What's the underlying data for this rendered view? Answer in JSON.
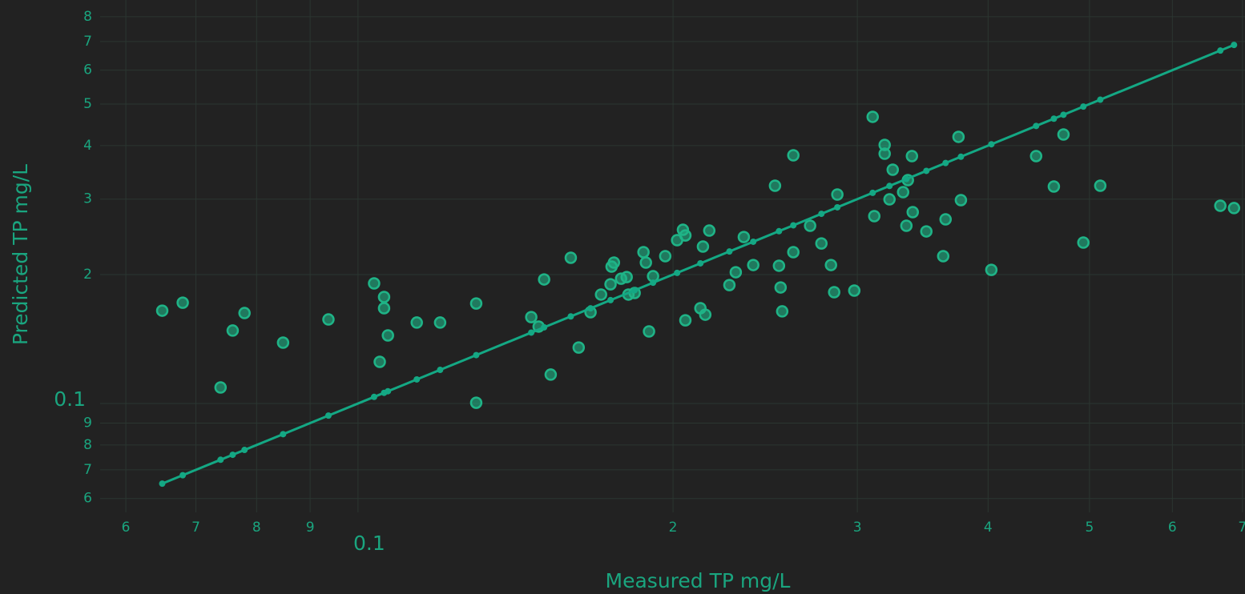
{
  "chart_data": {
    "type": "scatter",
    "x_label": "Measured TP mg/L",
    "y_label": "Predicted TP mg/L",
    "x_log": true,
    "y_log": true,
    "grid": true,
    "xlim": [
      0.0567,
      0.704
    ],
    "ylim": [
      0.0557,
      0.875
    ],
    "xticks": [
      {
        "value": 0.06,
        "label": "6"
      },
      {
        "value": 0.07,
        "label": "7"
      },
      {
        "value": 0.08,
        "label": "8"
      },
      {
        "value": 0.09,
        "label": "9"
      },
      0.1,
      {
        "value": 0.2,
        "label": "2"
      },
      {
        "value": 0.3,
        "label": "3"
      },
      {
        "value": 0.4,
        "label": "4"
      },
      {
        "value": 0.5,
        "label": "5"
      },
      {
        "value": 0.6,
        "label": "6"
      },
      {
        "value": 0.7,
        "label": "7"
      }
    ],
    "yticks": [
      {
        "value": 0.06,
        "label": "6"
      },
      {
        "value": 0.07,
        "label": "7"
      },
      {
        "value": 0.08,
        "label": "8"
      },
      {
        "value": 0.09,
        "label": "9"
      },
      0.1,
      {
        "value": 0.2,
        "label": "2"
      },
      {
        "value": 0.3,
        "label": "3"
      },
      {
        "value": 0.4,
        "label": "4"
      },
      {
        "value": 0.5,
        "label": "5"
      },
      {
        "value": 0.6,
        "label": "6"
      },
      {
        "value": 0.7,
        "label": "7"
      },
      {
        "value": 0.8,
        "label": "8"
      }
    ],
    "series": [
      {
        "mode": "markers",
        "color": "#1fb487",
        "x": [
          0.065,
          0.068,
          0.0739,
          0.0759,
          0.0779,
          0.0848,
          0.0937,
          0.1036,
          0.1059,
          0.1059,
          0.1049,
          0.1068,
          0.1138,
          0.1198,
          0.1297,
          0.1297,
          0.1464,
          0.1488,
          0.1506,
          0.1528,
          0.1597,
          0.1625,
          0.1668,
          0.1707,
          0.1743,
          0.1747,
          0.1756,
          0.1784,
          0.1806,
          0.1813,
          0.1838,
          0.1874,
          0.1884,
          0.1897,
          0.1914,
          0.1966,
          0.2018,
          0.2044,
          0.2055,
          0.2055,
          0.2124,
          0.2136,
          0.2147,
          0.2166,
          0.2264,
          0.2296,
          0.2337,
          0.2386,
          0.2503,
          0.2525,
          0.2534,
          0.2543,
          0.2606,
          0.2606,
          0.2704,
          0.2772,
          0.2831,
          0.2851,
          0.2871,
          0.298,
          0.3103,
          0.3114,
          0.3186,
          0.3186,
          0.322,
          0.3243,
          0.3318,
          0.3342,
          0.3353,
          0.3383,
          0.3389,
          0.3492,
          0.3624,
          0.3643,
          0.3748,
          0.3768,
          0.4029,
          0.4446,
          0.4623,
          0.4722,
          0.4933,
          0.512,
          0.6668,
          0.6872
        ],
        "values": [
          0.1647,
          0.1719,
          0.109,
          0.148,
          0.1626,
          0.1387,
          0.1571,
          0.1907,
          0.1773,
          0.1669,
          0.1251,
          0.1442,
          0.1545,
          0.1545,
          0.1712,
          0.1004,
          0.1591,
          0.1512,
          0.1948,
          0.1168,
          0.2189,
          0.1351,
          0.1633,
          0.1796,
          0.1898,
          0.2087,
          0.2133,
          0.1956,
          0.1973,
          0.1796,
          0.1811,
          0.2256,
          0.2133,
          0.1473,
          0.1982,
          0.2208,
          0.2406,
          0.2544,
          0.2468,
          0.1564,
          0.1669,
          0.2325,
          0.1612,
          0.2533,
          0.189,
          0.2025,
          0.2447,
          0.2105,
          0.3224,
          0.2097,
          0.1866,
          0.1641,
          0.3797,
          0.2256,
          0.26,
          0.2364,
          0.2105,
          0.1819,
          0.3075,
          0.1835,
          0.4669,
          0.2738,
          0.4016,
          0.383,
          0.2996,
          0.3514,
          0.3115,
          0.26,
          0.3322,
          0.3781,
          0.2797,
          0.2522,
          0.2208,
          0.2691,
          0.4193,
          0.2984,
          0.2051,
          0.3781,
          0.321,
          0.4246,
          0.2375,
          0.3224,
          0.2895,
          0.2859
        ]
      },
      {
        "mode": "lines+markers",
        "color": "#14a884",
        "x": [
          0.065,
          0.068,
          0.0739,
          0.0759,
          0.0779,
          0.0848,
          0.0937,
          0.1036,
          0.1059,
          0.1068,
          0.1138,
          0.1198,
          0.1297,
          0.1464,
          0.1506,
          0.1597,
          0.1668,
          0.1743,
          0.1838,
          0.1914,
          0.2018,
          0.2124,
          0.2264,
          0.2386,
          0.2525,
          0.2606,
          0.2772,
          0.2871,
          0.3103,
          0.322,
          0.3342,
          0.3492,
          0.3643,
          0.3768,
          0.4029,
          0.4446,
          0.4623,
          0.4722,
          0.4933,
          0.512,
          0.6668,
          0.6872
        ],
        "values": [
          0.065,
          0.068,
          0.0739,
          0.0759,
          0.0779,
          0.0848,
          0.0937,
          0.1036,
          0.1059,
          0.1068,
          0.1138,
          0.1198,
          0.1297,
          0.1464,
          0.1506,
          0.1597,
          0.1668,
          0.1743,
          0.1838,
          0.1914,
          0.2018,
          0.2124,
          0.2264,
          0.2386,
          0.2525,
          0.2606,
          0.2772,
          0.2871,
          0.3103,
          0.322,
          0.3342,
          0.3492,
          0.3643,
          0.3768,
          0.4029,
          0.4446,
          0.4623,
          0.4722,
          0.4933,
          0.512,
          0.6668,
          0.6872
        ]
      }
    ]
  }
}
